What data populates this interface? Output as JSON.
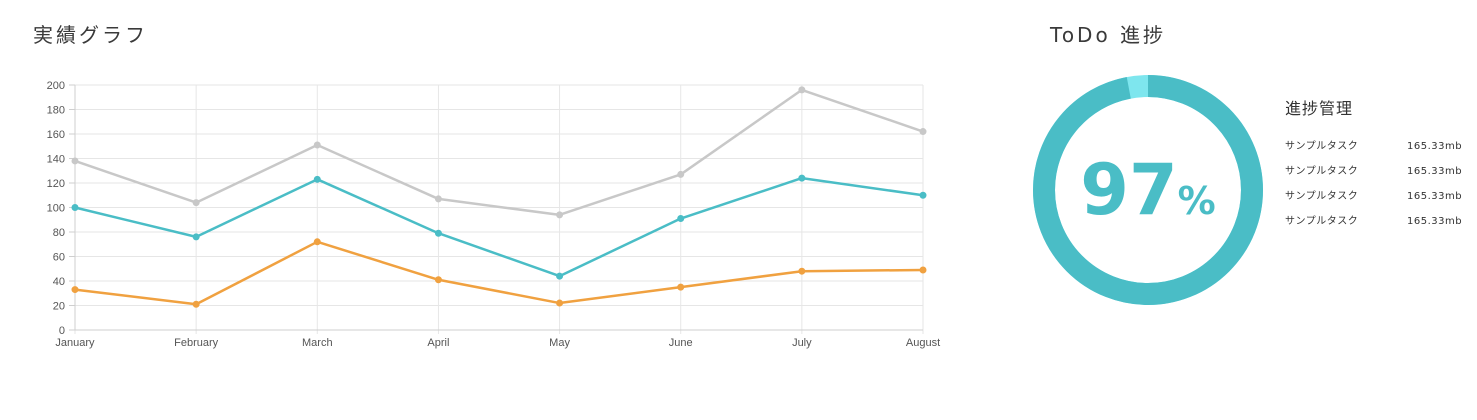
{
  "left_panel": {
    "title": "実績グラフ"
  },
  "right_panel": {
    "title": "ToDo 進捗",
    "progress": {
      "value": 97,
      "unit": "%",
      "color": "#4ABDC6",
      "remainder_color": "#7EE6EE"
    },
    "list_heading": "進捗管理",
    "items": [
      {
        "name": "サンプルタスク",
        "size": "165.33mb"
      },
      {
        "name": "サンプルタスク",
        "size": "165.33mb"
      },
      {
        "name": "サンプルタスク",
        "size": "165.33mb"
      },
      {
        "name": "サンプルタスク",
        "size": "165.33mb"
      }
    ]
  },
  "chart_data": {
    "type": "line",
    "title": "",
    "xlabel": "",
    "ylabel": "",
    "categories": [
      "January",
      "February",
      "March",
      "April",
      "May",
      "June",
      "July",
      "August"
    ],
    "ylim": [
      0,
      200
    ],
    "yticks": [
      0,
      20,
      40,
      60,
      80,
      100,
      120,
      140,
      160,
      180,
      200
    ],
    "grid": true,
    "series": [
      {
        "color": "#C8C8C8",
        "values": [
          138,
          104,
          151,
          107,
          94,
          127,
          196,
          162
        ]
      },
      {
        "color": "#4ABDC6",
        "values": [
          100,
          76,
          123,
          79,
          44,
          91,
          124,
          110
        ]
      },
      {
        "color": "#F0A140",
        "values": [
          33,
          21,
          72,
          41,
          22,
          35,
          48,
          49
        ]
      }
    ]
  }
}
